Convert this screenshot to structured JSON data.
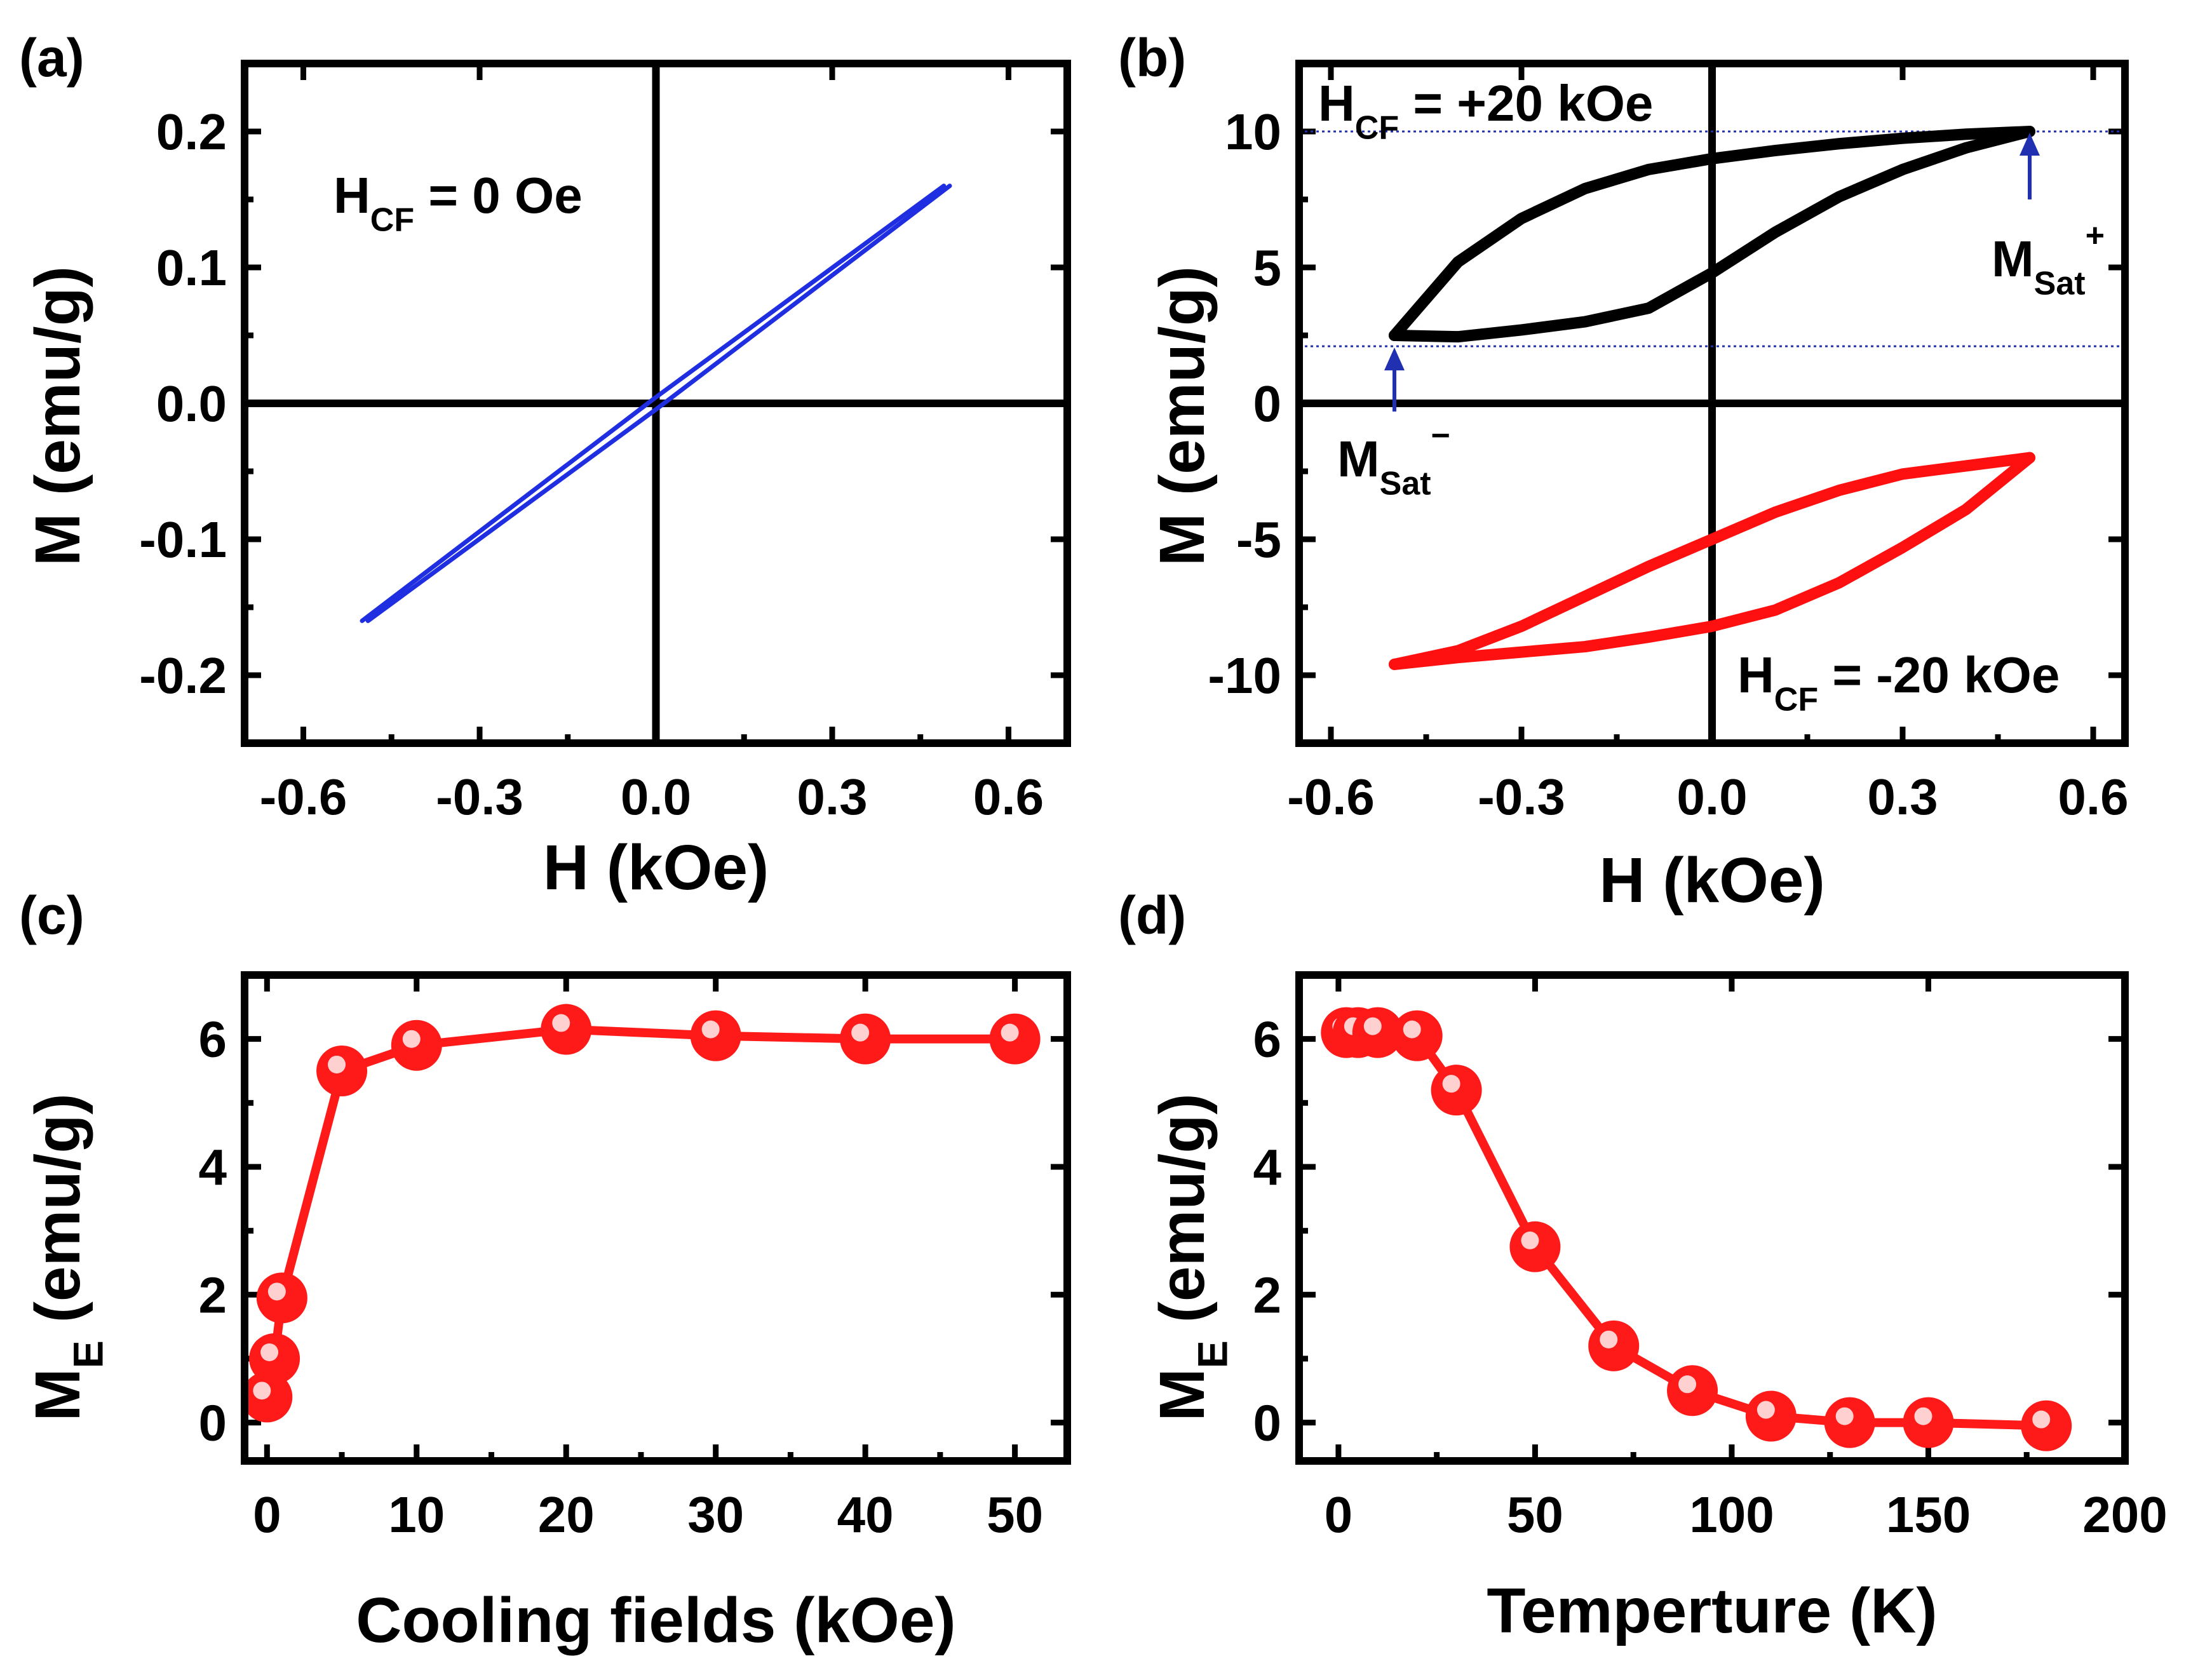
{
  "colors": {
    "axis": "#000000",
    "loop_a": "#1f2ee0",
    "loop_pos": "#000000",
    "loop_neg": "#ff1010",
    "marker": "#ff1a1a",
    "guide": "#2030b0"
  },
  "chart_data": [
    {
      "panel": "(a)",
      "type": "line",
      "xlabel": "H (kOe)",
      "ylabel": "M (emu/g)",
      "xlim": [
        -0.7,
        0.7
      ],
      "ylim": [
        -0.25,
        0.25
      ],
      "xticks": [
        "-0.6",
        "-0.3",
        "0.0",
        "0.3",
        "0.6"
      ],
      "yticks": [
        "-0.2",
        "-0.1",
        "0.0",
        "0.1",
        "0.2"
      ],
      "annotation": {
        "main": "H",
        "sub": "CF",
        "rest": " = 0 Oe"
      },
      "series": [
        {
          "name": "H_CF = 0 Oe",
          "color_key": "loop_a",
          "upper_branch": [
            [
              -0.5,
              -0.16
            ],
            [
              0.0,
              0.0045
            ],
            [
              0.49,
              0.16
            ]
          ],
          "lower_branch": [
            [
              -0.49,
              -0.16
            ],
            [
              0.0,
              -0.0045
            ],
            [
              0.5,
              0.16
            ]
          ]
        }
      ]
    },
    {
      "panel": "(b)",
      "type": "line",
      "xlabel": "H (kOe)",
      "ylabel": "M (emu/g)",
      "xlim": [
        -0.65,
        0.65
      ],
      "ylim": [
        -12.5,
        12.5
      ],
      "xticks": [
        "-0.6",
        "-0.3",
        "0.0",
        "0.3",
        "0.6"
      ],
      "yticks": [
        "-10",
        "-5",
        "0",
        "5",
        "10"
      ],
      "annotations": [
        {
          "main": "H",
          "sub": "CF",
          "rest": " = +20 kOe"
        },
        {
          "main": "H",
          "sub": "CF",
          "rest": " = -20 kOe"
        },
        {
          "main": "M",
          "sub": "Sat",
          "sup": "+"
        },
        {
          "main": "M",
          "sub": "Sat",
          "sup": "−"
        }
      ],
      "series": [
        {
          "name": "H_CF = +20 kOe",
          "color_key": "loop_pos",
          "upper_branch": [
            [
              -0.5,
              2.5
            ],
            [
              -0.4,
              5.2
            ],
            [
              -0.3,
              6.8
            ],
            [
              -0.2,
              7.9
            ],
            [
              -0.1,
              8.6
            ],
            [
              0.0,
              9.0
            ],
            [
              0.1,
              9.3
            ],
            [
              0.2,
              9.55
            ],
            [
              0.3,
              9.75
            ],
            [
              0.4,
              9.9
            ],
            [
              0.5,
              10.0
            ]
          ],
          "lower_branch": [
            [
              -0.5,
              2.5
            ],
            [
              -0.4,
              2.45
            ],
            [
              -0.3,
              2.7
            ],
            [
              -0.2,
              3.0
            ],
            [
              -0.1,
              3.5
            ],
            [
              0.0,
              4.8
            ],
            [
              0.1,
              6.3
            ],
            [
              0.2,
              7.6
            ],
            [
              0.3,
              8.6
            ],
            [
              0.4,
              9.4
            ],
            [
              0.5,
              10.0
            ]
          ]
        },
        {
          "name": "H_CF = -20 kOe",
          "color_key": "loop_neg",
          "upper_branch": [
            [
              -0.5,
              -9.6
            ],
            [
              -0.4,
              -9.1
            ],
            [
              -0.3,
              -8.2
            ],
            [
              -0.2,
              -7.1
            ],
            [
              -0.1,
              -6.0
            ],
            [
              0.0,
              -5.0
            ],
            [
              0.1,
              -4.0
            ],
            [
              0.2,
              -3.2
            ],
            [
              0.3,
              -2.6
            ],
            [
              0.4,
              -2.3
            ],
            [
              0.5,
              -2.0
            ]
          ],
          "lower_branch": [
            [
              -0.5,
              -9.6
            ],
            [
              -0.4,
              -9.35
            ],
            [
              -0.3,
              -9.15
            ],
            [
              -0.2,
              -8.95
            ],
            [
              -0.1,
              -8.6
            ],
            [
              0.0,
              -8.2
            ],
            [
              0.1,
              -7.6
            ],
            [
              0.2,
              -6.6
            ],
            [
              0.3,
              -5.3
            ],
            [
              0.4,
              -3.9
            ],
            [
              0.5,
              -2.0
            ]
          ]
        }
      ],
      "guide_lines_y": [
        10.0,
        2.1
      ],
      "arrows": [
        {
          "x": 0.5,
          "y_from": 7.5,
          "y_to": 10.0
        },
        {
          "x": -0.5,
          "y_from": -0.3,
          "y_to": 2.1
        }
      ]
    },
    {
      "panel": "(c)",
      "type": "line",
      "xlabel": "Cooling fields (kOe)",
      "ylabel": "M_E (emu/g)",
      "ylabel_parts": {
        "main": "M",
        "sub": "E",
        "rest": " (emu/g)"
      },
      "xlim": [
        -1.5,
        53.5
      ],
      "ylim": [
        -0.6,
        7.0
      ],
      "xticks": [
        "0",
        "10",
        "20",
        "30",
        "40",
        "50"
      ],
      "yticks": [
        "0",
        "2",
        "4",
        "6"
      ],
      "x": [
        0,
        0.5,
        1,
        5,
        10,
        20,
        30,
        40,
        50
      ],
      "y": [
        0.4,
        1.0,
        1.95,
        5.5,
        5.9,
        6.15,
        6.05,
        6.0,
        6.0
      ]
    },
    {
      "panel": "(d)",
      "type": "line",
      "xlabel": "Temperture (K)",
      "ylabel": "M_E (emu/g)",
      "ylabel_parts": {
        "main": "M",
        "sub": "E",
        "rest": " (emu/g)"
      },
      "xlim": [
        -10,
        200
      ],
      "ylim": [
        -0.6,
        7.0
      ],
      "xticks": [
        "0",
        "50",
        "100",
        "150",
        "200"
      ],
      "yticks": [
        "0",
        "2",
        "4",
        "6"
      ],
      "x": [
        2,
        5,
        10,
        20,
        30,
        50,
        70,
        90,
        110,
        130,
        150,
        180
      ],
      "y": [
        6.1,
        6.1,
        6.1,
        6.05,
        5.2,
        2.75,
        1.2,
        0.5,
        0.1,
        0.0,
        0.0,
        -0.05
      ]
    }
  ]
}
